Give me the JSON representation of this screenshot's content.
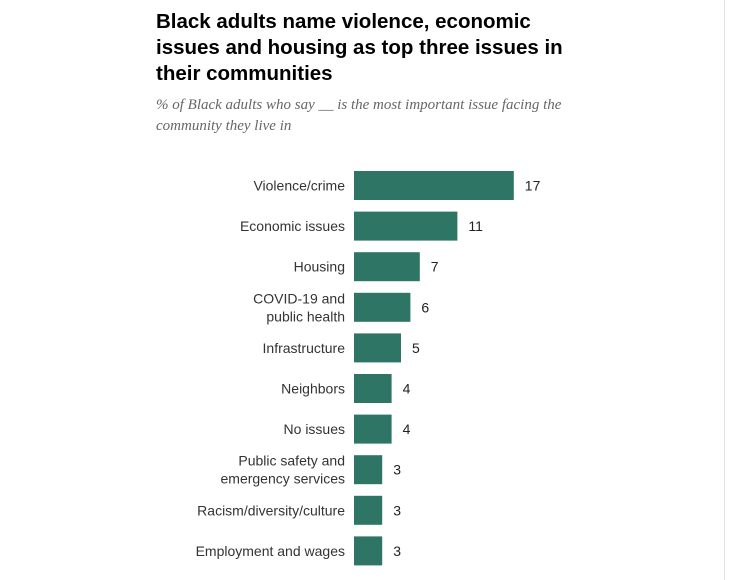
{
  "chart_data": {
    "type": "bar",
    "orientation": "horizontal",
    "title": "Black adults name violence, economic issues and housing as top three issues in their communities",
    "subtitle": "% of Black adults who say __ is the most important issue facing the community they live in",
    "categories": [
      "Violence/crime",
      "Economic issues",
      "Housing",
      "COVID-19 and public health",
      "Infrastructure",
      "Neighbors",
      "No issues",
      "Public safety and emergency services",
      "Racism/diversity/culture",
      "Employment and wages"
    ],
    "category_lines": [
      [
        "Violence/crime"
      ],
      [
        "Economic issues"
      ],
      [
        "Housing"
      ],
      [
        "COVID-19 and",
        "public health"
      ],
      [
        "Infrastructure"
      ],
      [
        "Neighbors"
      ],
      [
        "No issues"
      ],
      [
        "Public safety and",
        "emergency services"
      ],
      [
        "Racism/diversity/culture"
      ],
      [
        "Employment and wages"
      ]
    ],
    "values": [
      17,
      11,
      7,
      6,
      5,
      4,
      4,
      3,
      3,
      3
    ],
    "bar_color": "#2e7566",
    "xlim": [
      0,
      17
    ],
    "grid": false,
    "legend": "none"
  }
}
